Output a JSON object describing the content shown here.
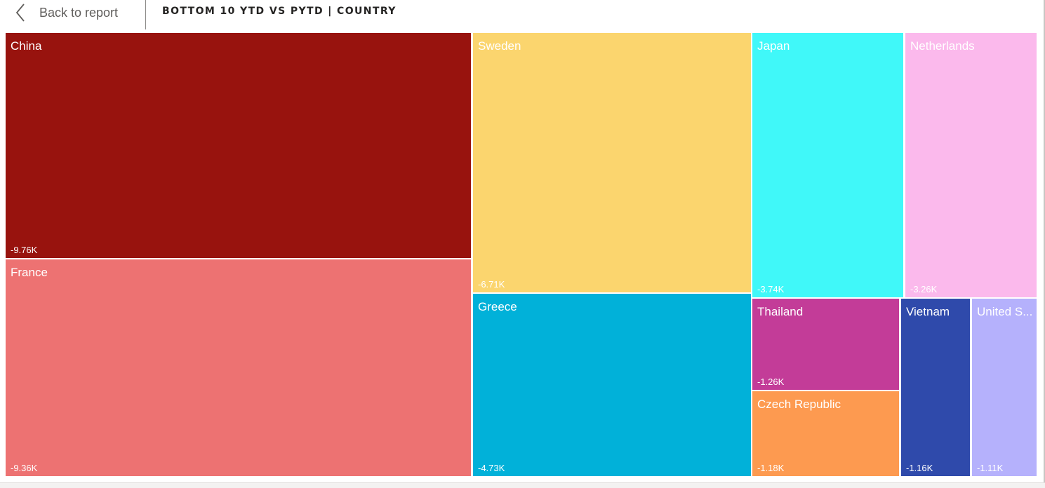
{
  "header": {
    "back_label": "Back to report",
    "title": "BOTTOM 10 YTD VS PYTD | COUNTRY",
    "back_icon": "chevron-left-icon"
  },
  "chart_data": {
    "type": "treemap",
    "title": "BOTTOM 10 YTD VS PYTD | COUNTRY",
    "items": [
      {
        "label": "China",
        "value": "-9.76K",
        "color": "#98130e"
      },
      {
        "label": "France",
        "value": "-9.36K",
        "color": "#ed7272"
      },
      {
        "label": "Sweden",
        "value": "-6.71K",
        "color": "#fbd56e"
      },
      {
        "label": "Greece",
        "value": "-4.73K",
        "color": "#01b1d9"
      },
      {
        "label": "Japan",
        "value": "-3.74K",
        "color": "#40f8f9"
      },
      {
        "label": "Netherlands",
        "value": "-3.26K",
        "color": "#fbb9ec"
      },
      {
        "label": "Thailand",
        "value": "-1.26K",
        "color": "#c33c98"
      },
      {
        "label": "Czech Republic",
        "value": "-1.18K",
        "color": "#fd9a50"
      },
      {
        "label": "Vietnam",
        "value": "-1.16K",
        "color": "#2f4aab"
      },
      {
        "label": "United S...",
        "value": "-1.11K",
        "color": "#b5b1fc"
      }
    ]
  }
}
